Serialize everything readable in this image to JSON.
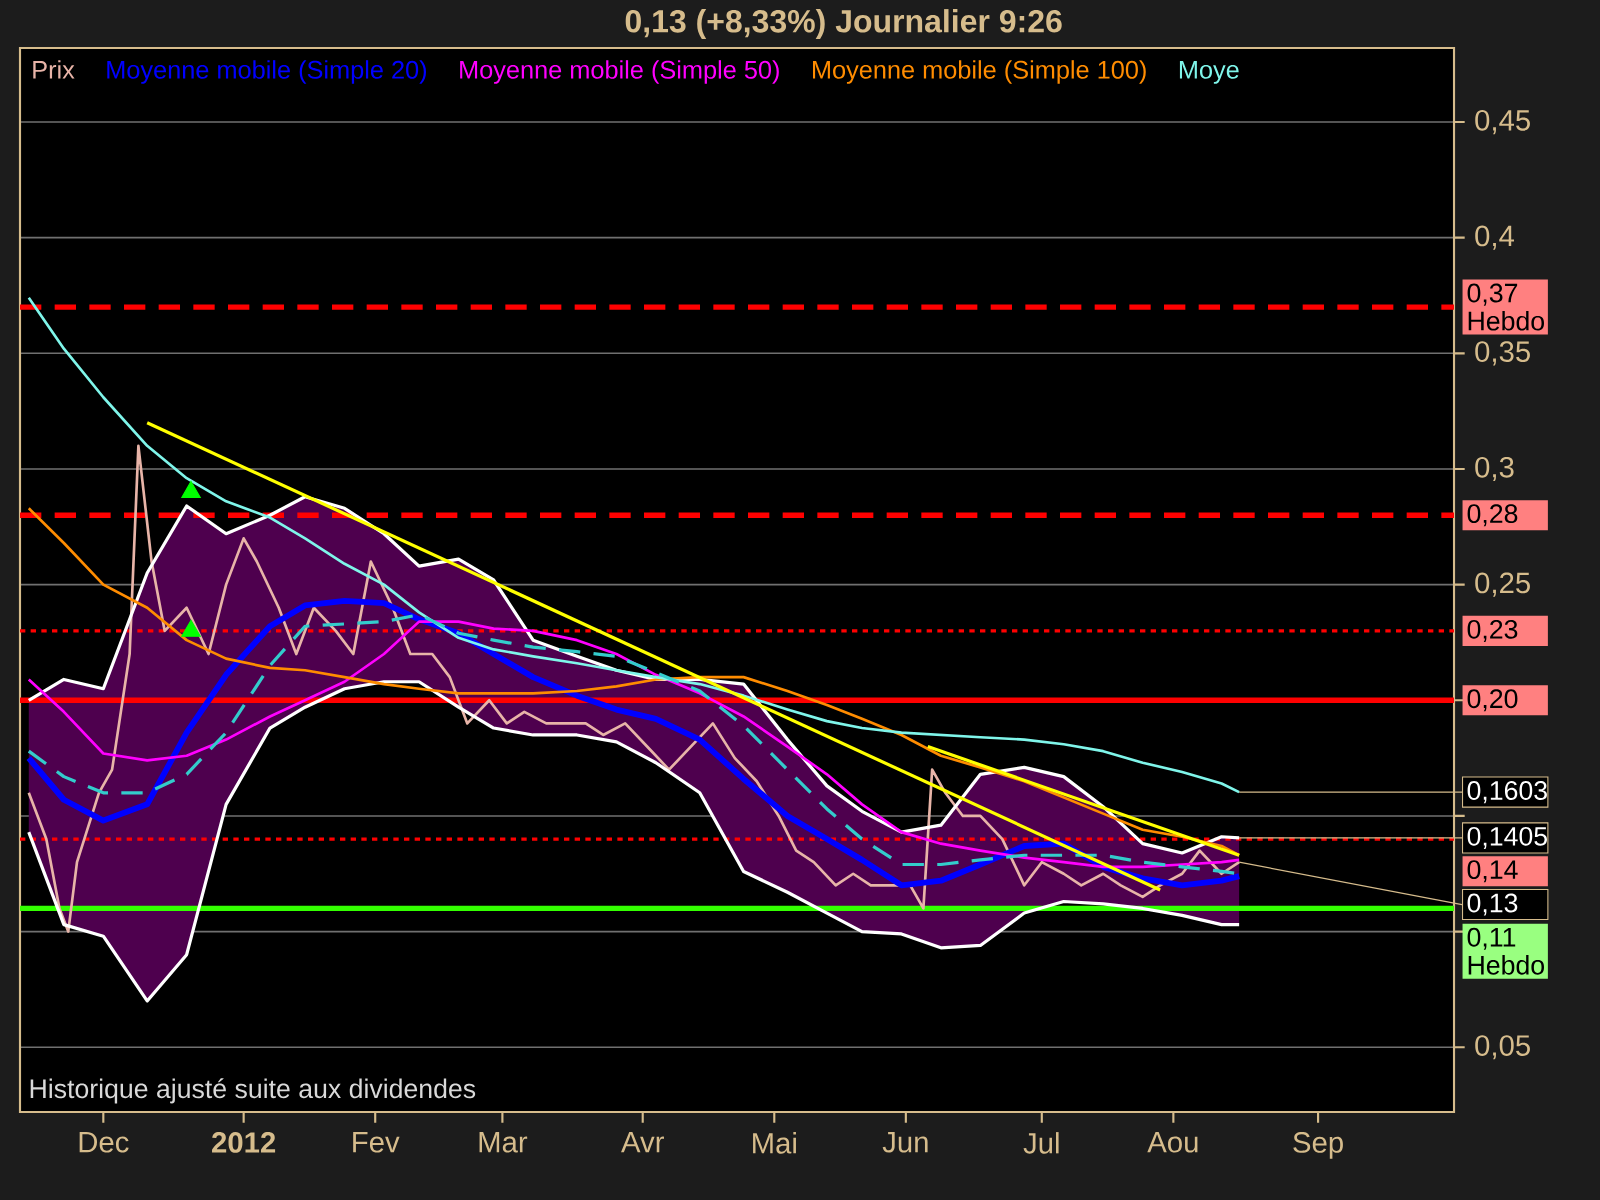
{
  "chart_data": {
    "type": "line",
    "title": "0,13 (+8,33%)    Journalier  9:26",
    "x": [
      "2011-11-14",
      "2011-11-22",
      "2011-12-01",
      "2011-12-11",
      "2011-12-20",
      "2011-12-29",
      "2012-01-08",
      "2012-01-16",
      "2012-01-25",
      "2012-02-03",
      "2012-02-11",
      "2012-02-20",
      "2012-02-28",
      "2012-03-08",
      "2012-03-18",
      "2012-03-27",
      "2012-04-05",
      "2012-04-15",
      "2012-04-25",
      "2012-05-05",
      "2012-05-14",
      "2012-05-22",
      "2012-05-31",
      "2012-06-09",
      "2012-06-18",
      "2012-06-28",
      "2012-07-07",
      "2012-07-16",
      "2012-07-25",
      "2012-08-03",
      "2012-08-12",
      "2012-08-16"
    ],
    "series": [
      {
        "name": "Prix",
        "color": "#e8b4a8",
        "x": [
          "2011-11-14",
          "2011-11-18",
          "2011-11-21",
          "2011-11-23",
          "2011-11-25",
          "2011-11-30",
          "2011-12-03",
          "2011-12-07",
          "2011-12-09",
          "2011-12-12",
          "2011-12-15",
          "2011-12-20",
          "2011-12-25",
          "2011-12-29",
          "2012-01-02",
          "2012-01-05",
          "2012-01-10",
          "2012-01-14",
          "2012-01-18",
          "2012-01-23",
          "2012-01-27",
          "2012-01-31",
          "2012-02-05",
          "2012-02-09",
          "2012-02-14",
          "2012-02-18",
          "2012-02-22",
          "2012-02-27",
          "2012-03-02",
          "2012-03-06",
          "2012-03-11",
          "2012-03-15",
          "2012-03-20",
          "2012-03-24",
          "2012-03-29",
          "2012-04-03",
          "2012-04-08",
          "2012-04-13",
          "2012-04-18",
          "2012-04-23",
          "2012-04-28",
          "2012-05-03",
          "2012-05-07",
          "2012-05-11",
          "2012-05-16",
          "2012-05-20",
          "2012-05-24",
          "2012-05-29",
          "2012-06-02",
          "2012-06-05",
          "2012-06-07",
          "2012-06-10",
          "2012-06-14",
          "2012-06-18",
          "2012-06-23",
          "2012-06-28",
          "2012-07-02",
          "2012-07-07",
          "2012-07-11",
          "2012-07-16",
          "2012-07-20",
          "2012-07-25",
          "2012-07-29",
          "2012-08-03",
          "2012-08-07",
          "2012-08-12",
          "2012-08-16"
        ],
        "values": [
          0.16,
          0.14,
          0.11,
          0.1,
          0.13,
          0.16,
          0.17,
          0.22,
          0.31,
          0.26,
          0.23,
          0.24,
          0.22,
          0.25,
          0.27,
          0.26,
          0.24,
          0.22,
          0.24,
          0.23,
          0.22,
          0.26,
          0.24,
          0.22,
          0.22,
          0.21,
          0.19,
          0.2,
          0.19,
          0.195,
          0.19,
          0.19,
          0.19,
          0.185,
          0.19,
          0.18,
          0.17,
          0.18,
          0.19,
          0.175,
          0.165,
          0.15,
          0.135,
          0.13,
          0.12,
          0.125,
          0.12,
          0.12,
          0.12,
          0.11,
          0.17,
          0.16,
          0.15,
          0.15,
          0.14,
          0.12,
          0.13,
          0.125,
          0.12,
          0.125,
          0.12,
          0.115,
          0.12,
          0.125,
          0.135,
          0.125,
          0.13
        ]
      },
      {
        "name": "Moyenne mobile (Simple 20)",
        "color": "#0000ff",
        "values": [
          0.175,
          0.157,
          0.148,
          0.155,
          0.186,
          0.211,
          0.232,
          0.241,
          0.243,
          0.242,
          0.235,
          0.229,
          0.22,
          0.21,
          0.202,
          0.196,
          0.192,
          0.183,
          0.166,
          0.15,
          0.14,
          0.131,
          0.12,
          0.122,
          0.129,
          0.137,
          0.138,
          0.128,
          0.123,
          0.12,
          0.122,
          0.124
        ],
        "upper": [
          0.2,
          0.209,
          0.205,
          0.255,
          0.284,
          0.272,
          0.28,
          0.288,
          0.283,
          0.272,
          0.258,
          0.261,
          0.252,
          0.226,
          0.219,
          0.213,
          0.209,
          0.209,
          0.207,
          0.183,
          0.163,
          0.152,
          0.143,
          0.146,
          0.168,
          0.171,
          0.167,
          0.154,
          0.138,
          0.134,
          0.141,
          0.1405
        ],
        "lower": [
          0.143,
          0.103,
          0.098,
          0.07,
          0.09,
          0.155,
          0.188,
          0.197,
          0.205,
          0.208,
          0.208,
          0.197,
          0.188,
          0.185,
          0.185,
          0.182,
          0.173,
          0.16,
          0.126,
          0.117,
          0.108,
          0.1,
          0.099,
          0.093,
          0.094,
          0.108,
          0.113,
          0.112,
          0.11,
          0.107,
          0.103,
          0.103
        ]
      },
      {
        "color": "#ffffff",
        "values": [
          0.2,
          0.209,
          0.205,
          0.255,
          0.284,
          0.272,
          0.28,
          0.288,
          0.283,
          0.272,
          0.258,
          0.261,
          0.252,
          0.226,
          0.219,
          0.213,
          0.209,
          0.209,
          0.207,
          0.183,
          0.163,
          0.152,
          0.143,
          0.146,
          0.168,
          0.171,
          0.167,
          0.154,
          0.138,
          0.134,
          0.141,
          0.1405
        ]
      },
      {
        "color": "#ffffff",
        "values": [
          0.143,
          0.103,
          0.098,
          0.07,
          0.09,
          0.155,
          0.188,
          0.197,
          0.205,
          0.208,
          0.208,
          0.197,
          0.188,
          0.185,
          0.185,
          0.182,
          0.173,
          0.16,
          0.126,
          0.117,
          0.108,
          0.1,
          0.099,
          0.093,
          0.094,
          0.108,
          0.113,
          0.112,
          0.11,
          0.107,
          0.103,
          0.103
        ]
      },
      {
        "name": "Moyenne mobile (Simple 50)",
        "color": "#ff00ff",
        "values": [
          0.209,
          0.195,
          0.177,
          0.174,
          0.176,
          0.183,
          0.193,
          0.2,
          0.208,
          0.22,
          0.234,
          0.234,
          0.231,
          0.23,
          0.226,
          0.22,
          0.211,
          0.203,
          0.193,
          0.18,
          0.168,
          0.155,
          0.143,
          0.138,
          0.135,
          0.132,
          0.13,
          0.128,
          0.128,
          0.129,
          0.13,
          0.131
        ]
      },
      {
        "name": "Moyenne mobile (Simple 100)",
        "color": "#ff8c00",
        "values": [
          0.283,
          0.268,
          0.25,
          0.24,
          0.226,
          0.218,
          0.214,
          0.213,
          0.21,
          0.207,
          0.205,
          0.203,
          0.203,
          0.203,
          0.204,
          0.206,
          0.209,
          0.21,
          0.21,
          0.204,
          0.198,
          0.192,
          0.185,
          0.176,
          0.171,
          0.165,
          0.158,
          0.151,
          0.144,
          0.141,
          0.137,
          0.133
        ]
      },
      {
        "name": "Moye",
        "color": "#7ff5ea",
        "values": [
          0.374,
          0.352,
          0.331,
          0.31,
          0.296,
          0.286,
          0.279,
          0.27,
          0.259,
          0.25,
          0.238,
          0.227,
          0.222,
          0.219,
          0.216,
          0.213,
          0.21,
          0.207,
          0.202,
          0.196,
          0.191,
          0.188,
          0.186,
          0.185,
          0.184,
          0.183,
          0.181,
          0.178,
          0.173,
          0.169,
          0.164,
          0.1603
        ]
      },
      {
        "color": "#33cccc",
        "line_style": "dashed",
        "values": [
          0.178,
          0.167,
          0.16,
          0.16,
          0.168,
          0.186,
          0.215,
          0.232,
          0.233,
          0.234,
          0.237,
          0.229,
          0.226,
          0.223,
          0.221,
          0.219,
          0.212,
          0.204,
          0.189,
          0.17,
          0.153,
          0.14,
          0.129,
          0.129,
          0.131,
          0.133,
          0.133,
          0.133,
          0.13,
          0.128,
          0.126,
          0.125
        ]
      },
      {
        "color": "#ffff00",
        "x": [
          "2011-12-11",
          "2012-07-29"
        ],
        "values": [
          0.32,
          0.118
        ]
      },
      {
        "color": "#ffff00",
        "x": [
          "2012-06-06",
          "2012-08-16"
        ],
        "values": [
          0.18,
          0.133
        ]
      },
      {
        "type": "scatter",
        "marker": "triangle",
        "color": "#00ff00",
        "x": [
          "2011-12-21",
          "2011-12-21"
        ],
        "values": [
          0.29,
          0.23
        ]
      }
    ],
    "xlim": [
      "2011-11-12",
      "2012-10-04"
    ],
    "xticks": [
      {
        "value": "2011-12-01",
        "label": "Dec"
      },
      {
        "value": "2012-01-02",
        "label": "**2012**"
      },
      {
        "value": "2012-02-01",
        "label": "Fev"
      },
      {
        "value": "2012-03-01",
        "label": "Mar"
      },
      {
        "value": "2012-04-02",
        "label": "Avr"
      },
      {
        "value": "2012-05-02",
        "label": "Mai"
      },
      {
        "value": "2012-06-01",
        "label": "Jun"
      },
      {
        "value": "2012-07-02",
        "label": "Jul"
      },
      {
        "value": "2012-08-01",
        "label": "Aou"
      },
      {
        "value": "2012-09-03",
        "label": "Sep"
      }
    ],
    "ylim": [
      0.022,
      0.482
    ],
    "yticks": [
      {
        "value": 0.05,
        "label": "0,05"
      },
      {
        "value": 0.1,
        "label": null
      },
      {
        "value": 0.15,
        "label": null
      },
      {
        "value": 0.2,
        "label": null
      },
      {
        "value": 0.25,
        "label": "0,25"
      },
      {
        "value": 0.3,
        "label": "0,3"
      },
      {
        "value": 0.35,
        "label": "0,35"
      },
      {
        "value": 0.4,
        "label": "0,4"
      },
      {
        "value": 0.45,
        "label": "0,45"
      }
    ],
    "ref_lines": [
      {
        "axis": "y",
        "value": 0.37,
        "label": "0,37 Hebdo",
        "color": "#ff0000",
        "line_style": "dashed"
      },
      {
        "axis": "y",
        "value": 0.28,
        "label": "0,28",
        "color": "#ff0000",
        "line_style": "dashed"
      },
      {
        "axis": "y",
        "value": 0.23,
        "label": "0,23",
        "color": "#ff0000",
        "line_style": "dotted"
      },
      {
        "axis": "y",
        "value": 0.2,
        "label": "0,20",
        "color": "#ff0000",
        "line_style": "solid"
      },
      {
        "axis": "y",
        "value": 0.14,
        "label": "0,14",
        "color": "#ff0000",
        "line_style": "dotted"
      },
      {
        "axis": "y",
        "value": 0.11,
        "label": "0,11 Hebdo",
        "color": "#33ff00",
        "line_style": "solid"
      }
    ],
    "annotations": [
      "Historique ajusté suite aux dividendes",
      {
        "text": "0,1603",
        "x": "2012-08-16",
        "y": 0.1603
      },
      {
        "text": "0,1405",
        "x": "2012-08-16",
        "y": 0.1405
      },
      {
        "text": "0,13",
        "x": "2012-08-16",
        "y": 0.13
      }
    ],
    "grid": "y",
    "legend": "top left"
  }
}
